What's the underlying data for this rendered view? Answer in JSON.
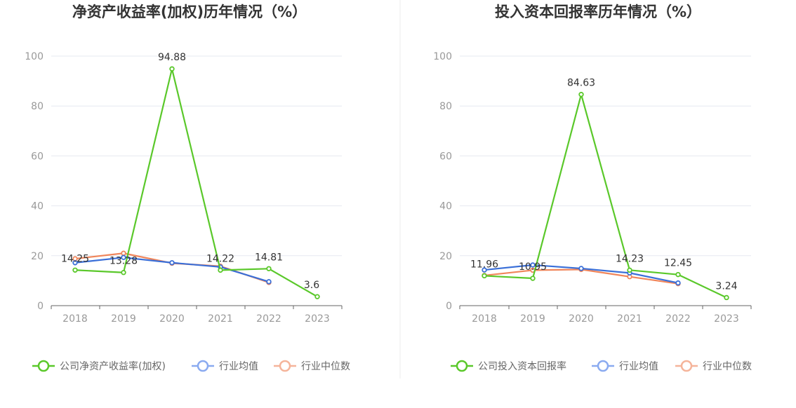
{
  "colors": {
    "company": "#5ac82a",
    "industry_avg": "#3a6fd8",
    "industry_median": "#f0855a",
    "legend_avg": "#8aaaf0",
    "legend_median": "#f5b49a"
  },
  "chart_data": [
    {
      "type": "line",
      "title": "净资产收益率(加权)历年情况（%）",
      "xlabel": "",
      "ylabel": "",
      "categories": [
        "2018",
        "2019",
        "2020",
        "2021",
        "2022",
        "2023"
      ],
      "ylim": [
        0,
        100
      ],
      "yticks": [
        "0",
        "20",
        "40",
        "60",
        "80",
        "100"
      ],
      "grid": true,
      "legend_position": "bottom",
      "series": [
        {
          "name": "公司净资产收益率(加权)",
          "values": [
            14.25,
            13.28,
            94.88,
            14.22,
            14.81,
            3.6
          ],
          "labels": [
            "14.25",
            "13.28",
            "94.88",
            "14.22",
            "14.81",
            "3.6"
          ]
        },
        {
          "name": "行业均值",
          "values": [
            17.2,
            19.3,
            17.2,
            15.5,
            9.6,
            null
          ]
        },
        {
          "name": "行业中位数",
          "values": [
            18.8,
            21.0,
            17.0,
            15.8,
            9.3,
            null
          ]
        }
      ]
    },
    {
      "type": "line",
      "title": "投入资本回报率历年情况（%）",
      "xlabel": "",
      "ylabel": "",
      "categories": [
        "2018",
        "2019",
        "2020",
        "2021",
        "2022",
        "2023"
      ],
      "ylim": [
        0,
        100
      ],
      "yticks": [
        "0",
        "20",
        "40",
        "60",
        "80",
        "100"
      ],
      "grid": true,
      "legend_position": "bottom",
      "series": [
        {
          "name": "公司投入资本回报率",
          "values": [
            11.96,
            10.95,
            84.63,
            14.23,
            12.45,
            3.24
          ],
          "labels": [
            "11.96",
            "10.95",
            "84.63",
            "14.23",
            "12.45",
            "3.24"
          ]
        },
        {
          "name": "行业均值",
          "values": [
            14.3,
            16.3,
            14.9,
            13.1,
            9.1,
            null
          ]
        },
        {
          "name": "行业中位数",
          "values": [
            12.1,
            14.2,
            14.5,
            11.6,
            8.8,
            null
          ]
        }
      ]
    }
  ]
}
